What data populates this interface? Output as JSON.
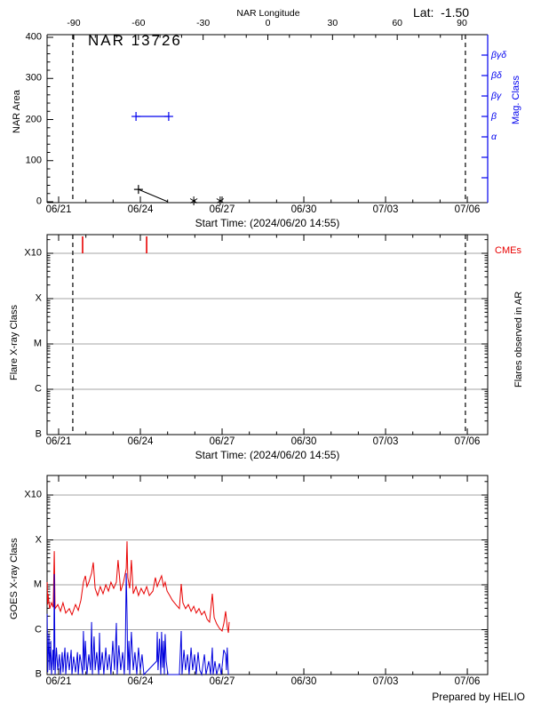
{
  "header": {
    "lat_label": "Lat:",
    "lat_value": "-1.50"
  },
  "footer": {
    "credit": "Prepared by HELIO"
  },
  "colors": {
    "axis": "#000000",
    "grid": "#a6a6a6",
    "mag_blue": "#0000ee",
    "cme_red": "#e80000",
    "goes_red": "#e80000",
    "goes_blue": "#0000dd"
  },
  "chart_data": [
    {
      "id": "nar-area-panel",
      "type": "line",
      "title": "NAR 13726",
      "ylabel": "NAR Area",
      "ylim": [
        0,
        400
      ],
      "yticks": [
        0,
        100,
        200,
        300,
        400
      ],
      "y_minor_step": 20,
      "xlabel": "Start Time: (2024/06/20 14:55)",
      "x_unit": "days since 2024/06/21 00:00",
      "xlim_days": [
        -0.42,
        15.75
      ],
      "xticks": {
        "days": [
          0,
          3,
          6,
          9,
          12,
          15
        ],
        "labels": [
          "06/21",
          "06/24",
          "06/27",
          "06/30",
          "07/03",
          "07/06"
        ]
      },
      "top_axis": {
        "label": "NAR Longitude",
        "ticks": [
          -90,
          -60,
          -30,
          0,
          30,
          60,
          90
        ],
        "minor_step": 10
      },
      "right_axis": {
        "label": "Mag. Class",
        "classes": [
          "βγδ",
          "βδ",
          "βγ",
          "β",
          "α"
        ],
        "n_ticks": 7
      },
      "limb_crossing_days": [
        0.52,
        14.93
      ],
      "series": [
        {
          "name": "nar-area",
          "color": "#000000",
          "marker": "plus",
          "points": [
            [
              2.93,
              30
            ],
            [
              4.01,
              0
            ]
          ]
        },
        {
          "name": "nar-area-zero-markers",
          "color": "#000000",
          "marker": "asterisk",
          "days": [
            4.96,
            5.93
          ],
          "value": 0
        },
        {
          "name": "mag-class",
          "color": "#0000ee",
          "marker": "plus",
          "mag_class": "β",
          "day_range": [
            2.84,
            4.04
          ]
        }
      ]
    },
    {
      "id": "flares-panel",
      "type": "event-timeline",
      "ylabel": "Flare X-ray Class",
      "y_decades": [
        "B",
        "C",
        "M",
        "X",
        "X10"
      ],
      "right_label": "Flares observed in AR",
      "xlabel": "Start Time: (2024/06/20 14:55)",
      "xticks": {
        "days": [
          0,
          3,
          6,
          9,
          12,
          15
        ],
        "labels": [
          "06/21",
          "06/24",
          "06/27",
          "06/30",
          "07/03",
          "07/06"
        ]
      },
      "cmes": {
        "label": "CMEs",
        "color": "#e80000",
        "days": [
          0.88,
          3.23
        ]
      },
      "flare_events": [],
      "limb_crossing_days": [
        0.52,
        14.93
      ]
    },
    {
      "id": "goes-panel",
      "type": "line",
      "ylabel": "GOES X-ray Class",
      "y_decades": [
        "B",
        "C",
        "M",
        "X",
        "X10"
      ],
      "y_unit": "decades above B (B=0, C=1, M=2, X=3, X10=4)",
      "xticks": {
        "days": [
          0,
          3,
          6,
          9,
          12,
          15
        ],
        "labels": [
          "06/21",
          "06/24",
          "06/27",
          "06/30",
          "07/03",
          "07/06"
        ]
      },
      "series": [
        {
          "name": "goes-red-series",
          "color": "#e80000",
          "points": [
            [
              -0.42,
              2.06
            ],
            [
              -0.4,
              1.56
            ],
            [
              -0.39,
              1.8
            ],
            [
              -0.33,
              1.47
            ],
            [
              -0.26,
              1.6
            ],
            [
              -0.2,
              1.5
            ],
            [
              -0.16,
              2.75
            ],
            [
              -0.13,
              1.47
            ],
            [
              -0.03,
              1.56
            ],
            [
              0.07,
              1.41
            ],
            [
              0.16,
              1.6
            ],
            [
              0.26,
              1.37
            ],
            [
              0.39,
              1.47
            ],
            [
              0.49,
              1.33
            ],
            [
              0.62,
              1.56
            ],
            [
              0.72,
              1.43
            ],
            [
              0.82,
              1.66
            ],
            [
              0.91,
              2.06
            ],
            [
              0.98,
              2.2
            ],
            [
              1.04,
              1.96
            ],
            [
              1.11,
              2.06
            ],
            [
              1.21,
              2.26
            ],
            [
              1.27,
              2.5
            ],
            [
              1.34,
              1.92
            ],
            [
              1.43,
              1.76
            ],
            [
              1.53,
              1.96
            ],
            [
              1.63,
              1.8
            ],
            [
              1.73,
              2.0
            ],
            [
              1.83,
              1.86
            ],
            [
              1.92,
              2.06
            ],
            [
              2.02,
              1.92
            ],
            [
              2.12,
              2.06
            ],
            [
              2.18,
              2.55
            ],
            [
              2.28,
              1.86
            ],
            [
              2.38,
              2.06
            ],
            [
              2.48,
              2.36
            ],
            [
              2.51,
              2.97
            ],
            [
              2.54,
              2.16
            ],
            [
              2.61,
              1.92
            ],
            [
              2.67,
              2.55
            ],
            [
              2.74,
              1.8
            ],
            [
              2.84,
              1.96
            ],
            [
              2.93,
              1.76
            ],
            [
              3.03,
              1.92
            ],
            [
              3.13,
              1.8
            ],
            [
              3.23,
              1.96
            ],
            [
              3.33,
              1.76
            ],
            [
              3.46,
              1.86
            ],
            [
              3.55,
              2.16
            ],
            [
              3.62,
              1.96
            ],
            [
              3.68,
              2.06
            ],
            [
              3.78,
              2.2
            ],
            [
              3.85,
              1.96
            ],
            [
              3.91,
              2.06
            ],
            [
              3.98,
              1.86
            ],
            [
              4.08,
              1.76
            ],
            [
              4.17,
              1.66
            ],
            [
              4.3,
              1.56
            ],
            [
              4.43,
              1.47
            ],
            [
              4.5,
              2.02
            ],
            [
              4.56,
              1.6
            ],
            [
              4.66,
              1.47
            ],
            [
              4.76,
              1.56
            ],
            [
              4.86,
              1.41
            ],
            [
              4.96,
              1.52
            ],
            [
              5.05,
              1.37
            ],
            [
              5.15,
              1.47
            ],
            [
              5.25,
              1.33
            ],
            [
              5.35,
              1.41
            ],
            [
              5.45,
              1.23
            ],
            [
              5.54,
              1.17
            ],
            [
              5.64,
              1.8
            ],
            [
              5.71,
              1.27
            ],
            [
              5.8,
              1.13
            ],
            [
              5.9,
              1.03
            ],
            [
              6.0,
              0.97
            ],
            [
              6.06,
              1.13
            ],
            [
              6.13,
              1.41
            ],
            [
              6.19,
              1.07
            ],
            [
              6.23,
              0.93
            ],
            [
              6.26,
              1.17
            ]
          ]
        },
        {
          "name": "goes-blue-series",
          "color": "#0000dd",
          "points": [
            [
              -0.42,
              1.35
            ],
            [
              -0.4,
              0.05
            ],
            [
              -0.36,
              0.9
            ],
            [
              -0.33,
              0.1
            ],
            [
              -0.29,
              0.75
            ],
            [
              -0.26,
              0.0
            ],
            [
              -0.21,
              0.55
            ],
            [
              -0.18,
              0.1
            ],
            [
              -0.16,
              2.24
            ],
            [
              -0.13,
              0.0
            ],
            [
              -0.08,
              0.6
            ],
            [
              -0.03,
              0.1
            ],
            [
              0.03,
              0.45
            ],
            [
              0.07,
              0.0
            ],
            [
              0.13,
              0.5
            ],
            [
              0.16,
              0.05
            ],
            [
              0.23,
              0.6
            ],
            [
              0.26,
              0.0
            ],
            [
              0.33,
              0.5
            ],
            [
              0.39,
              0.1
            ],
            [
              0.46,
              0.55
            ],
            [
              0.49,
              0.0
            ],
            [
              0.55,
              0.4
            ],
            [
              0.62,
              0.05
            ],
            [
              0.69,
              0.5
            ],
            [
              0.72,
              0.0
            ],
            [
              0.78,
              0.45
            ],
            [
              0.82,
              0.3
            ],
            [
              0.88,
              0.0
            ],
            [
              0.91,
              0.97
            ],
            [
              0.95,
              0.1
            ],
            [
              0.98,
              0.75
            ],
            [
              1.04,
              0.0
            ],
            [
              1.11,
              0.45
            ],
            [
              1.17,
              0.1
            ],
            [
              1.21,
              1.17
            ],
            [
              1.24,
              0.0
            ],
            [
              1.3,
              0.85
            ],
            [
              1.34,
              0.1
            ],
            [
              1.4,
              0.5
            ],
            [
              1.47,
              0.0
            ],
            [
              1.5,
              0.93
            ],
            [
              1.53,
              0.1
            ],
            [
              1.6,
              0.5
            ],
            [
              1.66,
              0.0
            ],
            [
              1.73,
              0.6
            ],
            [
              1.79,
              0.1
            ],
            [
              1.86,
              0.45
            ],
            [
              1.92,
              0.0
            ],
            [
              1.99,
              0.75
            ],
            [
              2.05,
              0.1
            ],
            [
              2.12,
              1.15
            ],
            [
              2.15,
              0.0
            ],
            [
              2.21,
              0.65
            ],
            [
              2.28,
              0.1
            ],
            [
              2.35,
              0.5
            ],
            [
              2.41,
              0.0
            ],
            [
              2.45,
              0.6
            ],
            [
              2.48,
              2.26
            ],
            [
              2.51,
              1.35
            ],
            [
              2.54,
              0.1
            ],
            [
              2.58,
              0.75
            ],
            [
              2.61,
              0.0
            ],
            [
              2.67,
              0.95
            ],
            [
              2.74,
              0.1
            ],
            [
              2.8,
              0.5
            ],
            [
              2.87,
              0.0
            ],
            [
              2.93,
              0.6
            ],
            [
              3.0,
              0.1
            ],
            [
              3.06,
              0.45
            ],
            [
              3.13,
              0.0
            ],
            [
              3.6,
              0.3
            ],
            [
              3.62,
              0.95
            ],
            [
              3.65,
              0.1
            ],
            [
              3.7,
              0.8
            ],
            [
              3.75,
              0.0
            ],
            [
              3.78,
              0.95
            ],
            [
              3.82,
              0.15
            ],
            [
              3.85,
              0.75
            ],
            [
              3.88,
              0.0
            ],
            [
              3.91,
              0.9
            ],
            [
              3.95,
              0.3
            ],
            [
              4.01,
              0.0
            ],
            [
              4.43,
              0.0
            ],
            [
              4.5,
              0.97
            ],
            [
              4.53,
              0.0
            ],
            [
              4.6,
              0.55
            ],
            [
              4.66,
              0.1
            ],
            [
              4.73,
              0.45
            ],
            [
              4.79,
              0.0
            ],
            [
              4.86,
              0.6
            ],
            [
              4.92,
              0.1
            ],
            [
              4.99,
              0.45
            ],
            [
              5.05,
              0.0
            ],
            [
              5.12,
              0.5
            ],
            [
              5.18,
              0.1
            ],
            [
              5.25,
              0.0
            ],
            [
              5.35,
              0.45
            ],
            [
              5.41,
              0.0
            ],
            [
              5.51,
              0.3
            ],
            [
              5.58,
              0.0
            ],
            [
              5.64,
              0.6
            ],
            [
              5.67,
              0.0
            ],
            [
              5.74,
              0.3
            ],
            [
              5.8,
              0.0
            ],
            [
              5.9,
              0.25
            ],
            [
              5.97,
              0.0
            ],
            [
              6.06,
              0.55
            ],
            [
              6.13,
              0.45
            ],
            [
              6.16,
              0.1
            ],
            [
              6.19,
              0.6
            ],
            [
              6.23,
              0.0
            ]
          ]
        }
      ]
    }
  ]
}
